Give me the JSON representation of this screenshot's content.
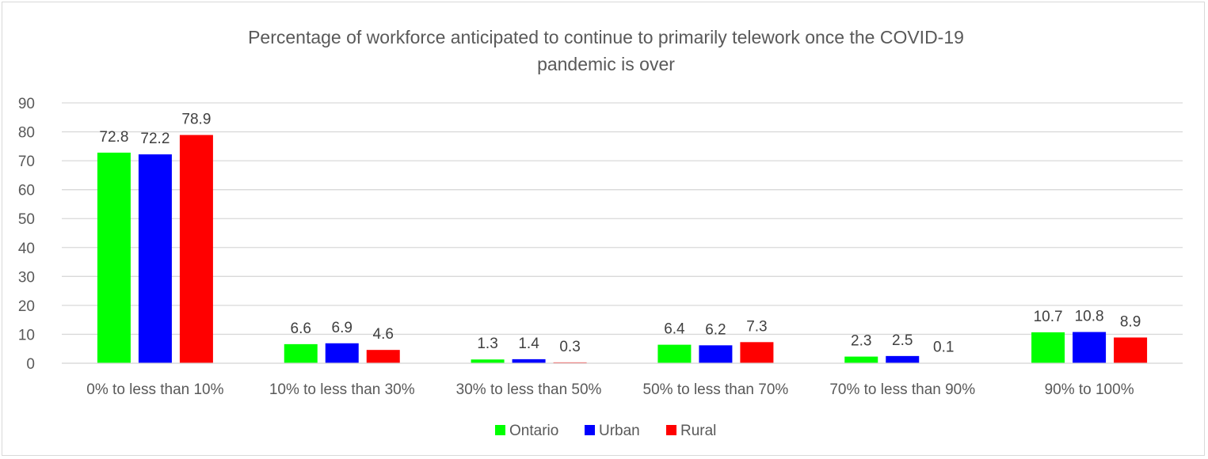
{
  "chart_data": {
    "type": "bar",
    "title": "Percentage of workforce anticipated to continue to primarily telework once the COVID-19 pandemic is over",
    "title_lines": [
      "Percentage of workforce anticipated to continue to primarily telework once the COVID-19",
      "pandemic is over"
    ],
    "xlabel": "",
    "ylabel": "",
    "ylim": [
      0,
      90
    ],
    "yticks": [
      0,
      10,
      20,
      30,
      40,
      50,
      60,
      70,
      80,
      90
    ],
    "grid": true,
    "legend_position": "bottom",
    "categories": [
      "0% to less than 10%",
      "10% to less than 30%",
      "30% to less than 50%",
      "50% to less than 70%",
      "70% to less than 90%",
      "90% to 100%"
    ],
    "series": [
      {
        "name": "Ontario",
        "color": "#00ff00",
        "values": [
          72.8,
          6.6,
          1.3,
          6.4,
          2.3,
          10.7
        ],
        "labels": [
          "72.8",
          "6.6",
          "1.3",
          "6.4",
          "2.3",
          "10.7"
        ]
      },
      {
        "name": "Urban",
        "color": "#0000ff",
        "values": [
          72.2,
          6.9,
          1.4,
          6.2,
          2.5,
          10.8
        ],
        "labels": [
          "72.2",
          "6.9",
          "1.4",
          "6.2",
          "2.5",
          "10.8"
        ]
      },
      {
        "name": "Rural",
        "color": "#ff0000",
        "values": [
          78.9,
          4.6,
          0.3,
          7.3,
          0.1,
          8.9
        ],
        "labels": [
          "78.9",
          "4.6",
          "0.3",
          "7.3",
          "0.1",
          "8.9"
        ]
      }
    ]
  }
}
